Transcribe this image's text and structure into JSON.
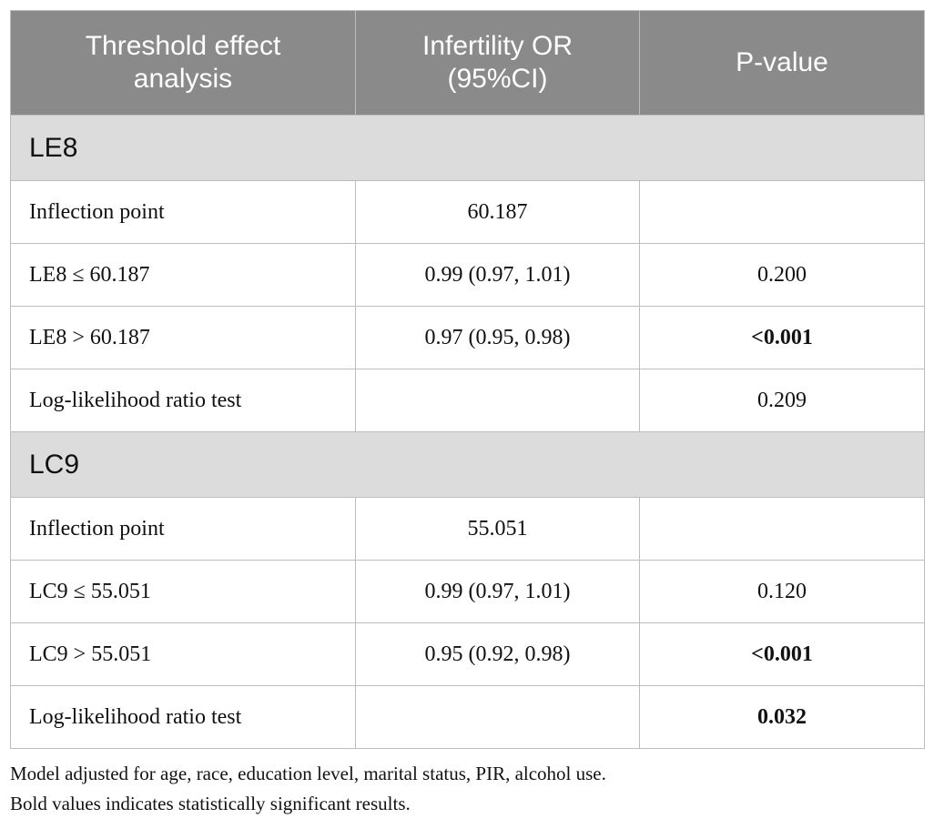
{
  "table": {
    "header": [
      "Threshold effect analysis",
      "Infertility OR (95%CI)",
      "P-value"
    ],
    "sections": [
      {
        "label": "LE8",
        "rows": [
          {
            "cells": [
              "Inflection point",
              "60.187",
              null
            ],
            "bold": [
              false,
              false,
              false
            ]
          },
          {
            "cells": [
              "LE8 ≤ 60.187",
              "0.99 (0.97, 1.01)",
              "0.200"
            ],
            "bold": [
              false,
              false,
              false
            ]
          },
          {
            "cells": [
              "LE8 > 60.187",
              "0.97 (0.95, 0.98)",
              "<0.001"
            ],
            "bold": [
              false,
              false,
              true
            ]
          },
          {
            "cells": [
              "Log-likelihood ratio test",
              null,
              "0.209"
            ],
            "bold": [
              false,
              false,
              false
            ]
          }
        ]
      },
      {
        "label": "LC9",
        "rows": [
          {
            "cells": [
              "Inflection point",
              "55.051",
              null
            ],
            "bold": [
              false,
              false,
              false
            ]
          },
          {
            "cells": [
              "LC9 ≤ 55.051",
              "0.99 (0.97, 1.01)",
              "0.120"
            ],
            "bold": [
              false,
              false,
              false
            ]
          },
          {
            "cells": [
              "LC9 > 55.051",
              "0.95 (0.92, 0.98)",
              "<0.001"
            ],
            "bold": [
              false,
              false,
              true
            ]
          },
          {
            "cells": [
              "Log-likelihood ratio test",
              null,
              "0.032"
            ],
            "bold": [
              false,
              false,
              true
            ]
          }
        ]
      }
    ]
  },
  "footnotes": [
    "Model adjusted for age, race, education level, marital status, PIR, alcohol use.",
    "Bold values indicates statistically significant results."
  ]
}
